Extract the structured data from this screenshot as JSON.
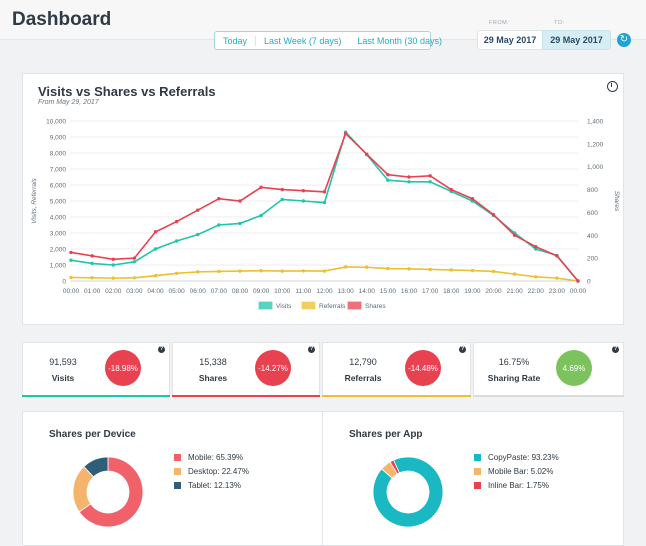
{
  "header": {
    "title": "Dashboard",
    "range_options": [
      "Today",
      "Last Week (7 days)",
      "Last Month (30 days)"
    ],
    "from_label": "FROM:",
    "to_label": "TO:",
    "from_date": "29 May 2017",
    "to_date": "29 May 2017",
    "refresh_icon": "refresh-icon"
  },
  "colors": {
    "visits": "#20c6a9",
    "referrals": "#ecc02e",
    "shares": "#e8414f",
    "good": "#7cc35e",
    "accent": "#1ea3d2"
  },
  "chart_data": {
    "type": "line",
    "title": "Visits vs Shares vs Referrals",
    "subtitle": "From May 29, 2017",
    "ylabel": "Visits, Referrals",
    "y2label": "Shares",
    "ylim": [
      0,
      10000
    ],
    "y2lim": [
      0,
      1400
    ],
    "yticks": [
      "0",
      "1,000",
      "2,000",
      "3,000",
      "4,000",
      "5,000",
      "6,000",
      "7,000",
      "8,000",
      "9,000",
      "10,000"
    ],
    "y2ticks": [
      "0",
      "200",
      "400",
      "600",
      "800",
      "1,000",
      "1,200",
      "1,400"
    ],
    "categories": [
      "00:00",
      "01:00",
      "02:00",
      "03:00",
      "04:00",
      "05:00",
      "06:00",
      "07:00",
      "08:00",
      "09:00",
      "10:00",
      "11:00",
      "12:00",
      "13:00",
      "14:00",
      "15:00",
      "16:00",
      "17:00",
      "18:00",
      "19:00",
      "20:00",
      "21:00",
      "22:00",
      "23:00",
      "00:00"
    ],
    "grid": true,
    "legend_position": "bottom",
    "series": [
      {
        "name": "Visits",
        "axis": "left",
        "values": [
          1300,
          1100,
          1000,
          1200,
          2000,
          2500,
          2900,
          3500,
          3600,
          4100,
          5100,
          5000,
          4900,
          9300,
          7900,
          6300,
          6200,
          6200,
          5600,
          5000,
          4100,
          3000,
          2000,
          1600,
          0
        ]
      },
      {
        "name": "Referrals",
        "axis": "left",
        "values": [
          220,
          200,
          180,
          200,
          330,
          480,
          570,
          600,
          620,
          640,
          620,
          630,
          620,
          880,
          860,
          780,
          760,
          720,
          690,
          650,
          600,
          430,
          260,
          180,
          0
        ]
      },
      {
        "name": "Shares",
        "axis": "right",
        "values": [
          250,
          220,
          190,
          200,
          430,
          520,
          620,
          720,
          700,
          820,
          800,
          790,
          780,
          1290,
          1110,
          930,
          910,
          920,
          800,
          720,
          580,
          400,
          300,
          220,
          0
        ]
      }
    ]
  },
  "stats": [
    {
      "value": "91,593",
      "label": "Visits",
      "change": "-18.98%"
    },
    {
      "value": "15,338",
      "label": "Shares",
      "change": "-14.27%"
    },
    {
      "value": "12,790",
      "label": "Referrals",
      "change": "-14.48%"
    },
    {
      "value": "16.75%",
      "label": "Sharing Rate",
      "change": "4.69%"
    }
  ],
  "pies": [
    {
      "title": "Shares per Device",
      "slices": [
        {
          "label": "Mobile: 65.39%",
          "value": 65.39,
          "color": "#f0616a"
        },
        {
          "label": "Desktop: 22.47%",
          "value": 22.47,
          "color": "#f5b46c"
        },
        {
          "label": "Tablet: 12.13%",
          "value": 12.13,
          "color": "#2f5f78"
        }
      ]
    },
    {
      "title": "Shares per App",
      "slices": [
        {
          "label": "CopyPaste: 93.23%",
          "value": 93.23,
          "color": "#1ab8c2"
        },
        {
          "label": "Mobile Bar: 5.02%",
          "value": 5.02,
          "color": "#f5b46c"
        },
        {
          "label": "Inline Bar: 1.75%",
          "value": 1.75,
          "color": "#e8414f"
        }
      ]
    }
  ]
}
